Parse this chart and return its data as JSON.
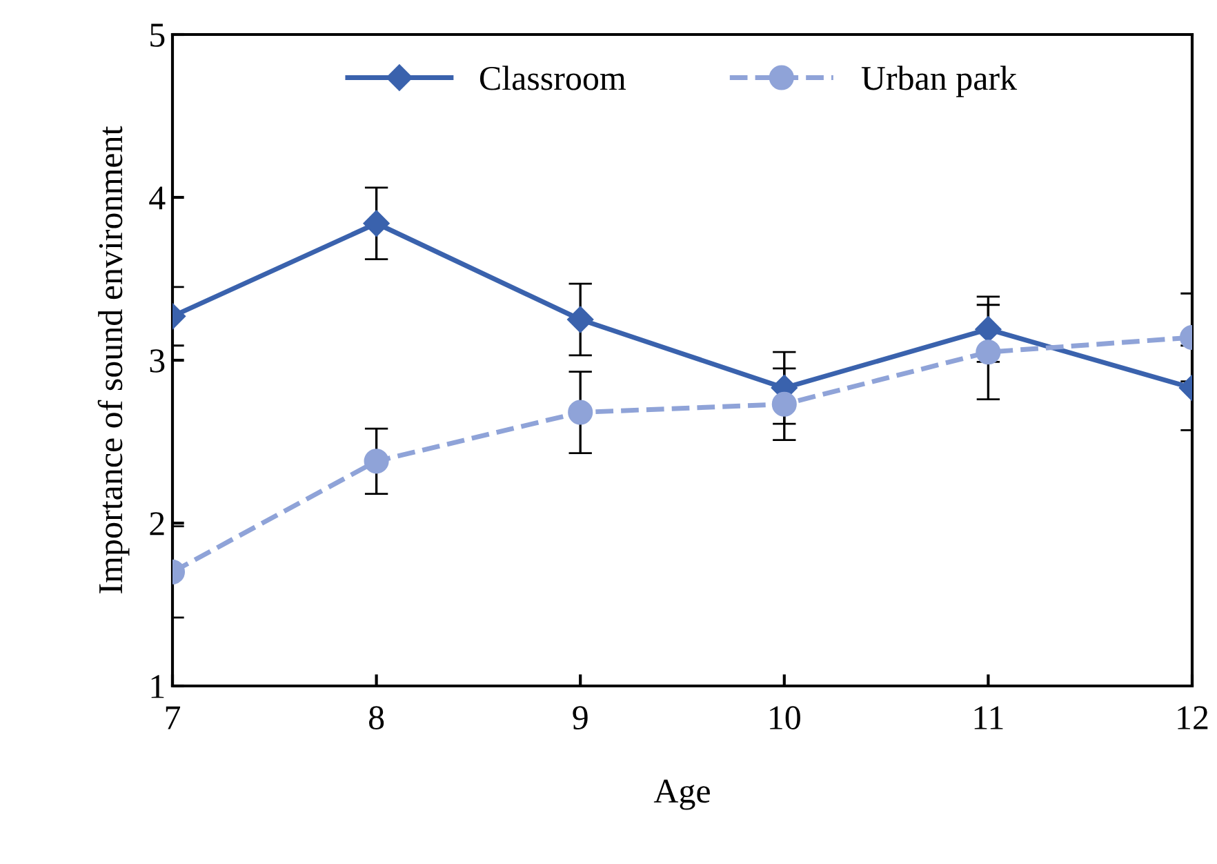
{
  "chart_data": {
    "type": "line",
    "xlabel": "Age",
    "ylabel": "Importance of sound environment",
    "x": [
      7,
      8,
      9,
      10,
      11,
      12
    ],
    "series": [
      {
        "name": "Classroom",
        "color": "#3a62ad",
        "marker": "diamond",
        "line_style": "solid",
        "values": [
          3.27,
          3.84,
          3.25,
          2.83,
          3.19,
          2.83
        ],
        "errors": [
          0.18,
          0.22,
          0.22,
          0.22,
          0.2,
          0.26
        ]
      },
      {
        "name": "Urban park",
        "color": "#8fa3d8",
        "marker": "circle",
        "line_style": "dashed",
        "values": [
          1.7,
          2.38,
          2.68,
          2.73,
          3.05,
          3.14
        ],
        "errors": [
          0.28,
          0.2,
          0.25,
          0.22,
          0.29,
          0.27
        ]
      }
    ],
    "xlim": [
      7,
      12
    ],
    "ylim": [
      1,
      5
    ],
    "xticks": [
      7,
      8,
      9,
      10,
      11,
      12
    ],
    "yticks": [
      1,
      2,
      3,
      4,
      5
    ],
    "grid": false,
    "legend": "top"
  }
}
